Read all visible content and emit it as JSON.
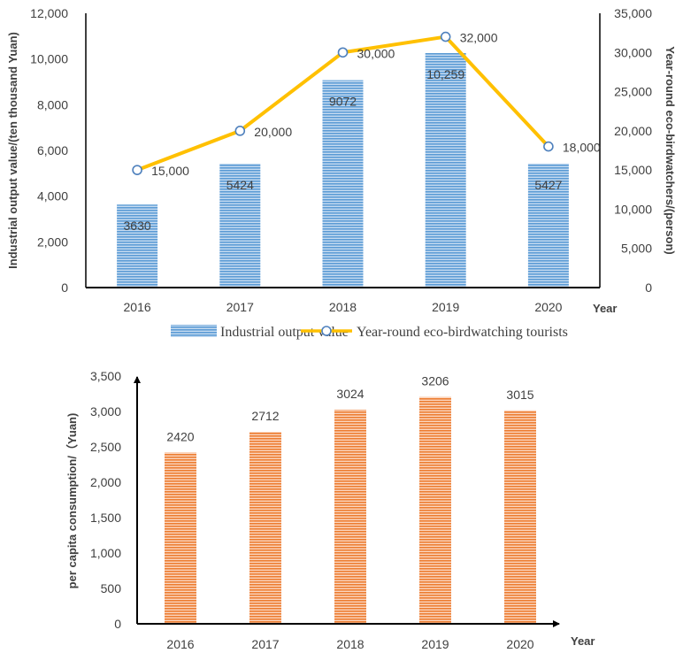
{
  "chart_data": [
    {
      "type": "bar",
      "title": "",
      "categories": [
        "2016",
        "2017",
        "2018",
        "2019",
        "2020"
      ],
      "xlabel": "Year",
      "ylabel": "Industrial output value/(ten thousand Yuan)",
      "ylim": [
        0,
        12000
      ],
      "yticks": [
        "0",
        "2,000",
        "4,000",
        "6,000",
        "8,000",
        "10,000",
        "12,000"
      ],
      "y2label": "Year-round eco-birdwatchers/(person)",
      "y2lim": [
        0,
        35000
      ],
      "y2ticks": [
        "0",
        "5,000",
        "10,000",
        "15,000",
        "20,000",
        "25,000",
        "30,000",
        "35,000"
      ],
      "series": [
        {
          "name": "Industrial output value",
          "kind": "bar",
          "axis": "left",
          "values": [
            3630,
            5424,
            9072,
            10259,
            5427
          ],
          "labels": [
            "3630",
            "5424",
            "9072",
            "10,259",
            "5427"
          ],
          "color": "#5b9bd5"
        },
        {
          "name": "Year-round eco-birdwatching tourists",
          "kind": "line",
          "axis": "right",
          "values": [
            15000,
            20000,
            30000,
            32000,
            18000
          ],
          "labels": [
            "15,000",
            "20,000",
            "30,000",
            "32,000",
            "18,000"
          ],
          "color": "#ffc000"
        }
      ],
      "legend": "bottom"
    },
    {
      "type": "bar",
      "title": "",
      "categories": [
        "2016",
        "2017",
        "2018",
        "2019",
        "2020"
      ],
      "xlabel": "Year",
      "ylabel": "per capita consumption/（Yuan)",
      "ylim": [
        0,
        3500
      ],
      "yticks": [
        "0",
        "500",
        "1,000",
        "1,500",
        "2,000",
        "2,500",
        "3,000",
        "3,500"
      ],
      "series": [
        {
          "name": "per capita consumption",
          "values": [
            2420,
            2712,
            3024,
            3206,
            3015
          ],
          "labels": [
            "2420",
            "2712",
            "3024",
            "3206",
            "3015"
          ],
          "color": "#ed7d31"
        }
      ]
    }
  ]
}
